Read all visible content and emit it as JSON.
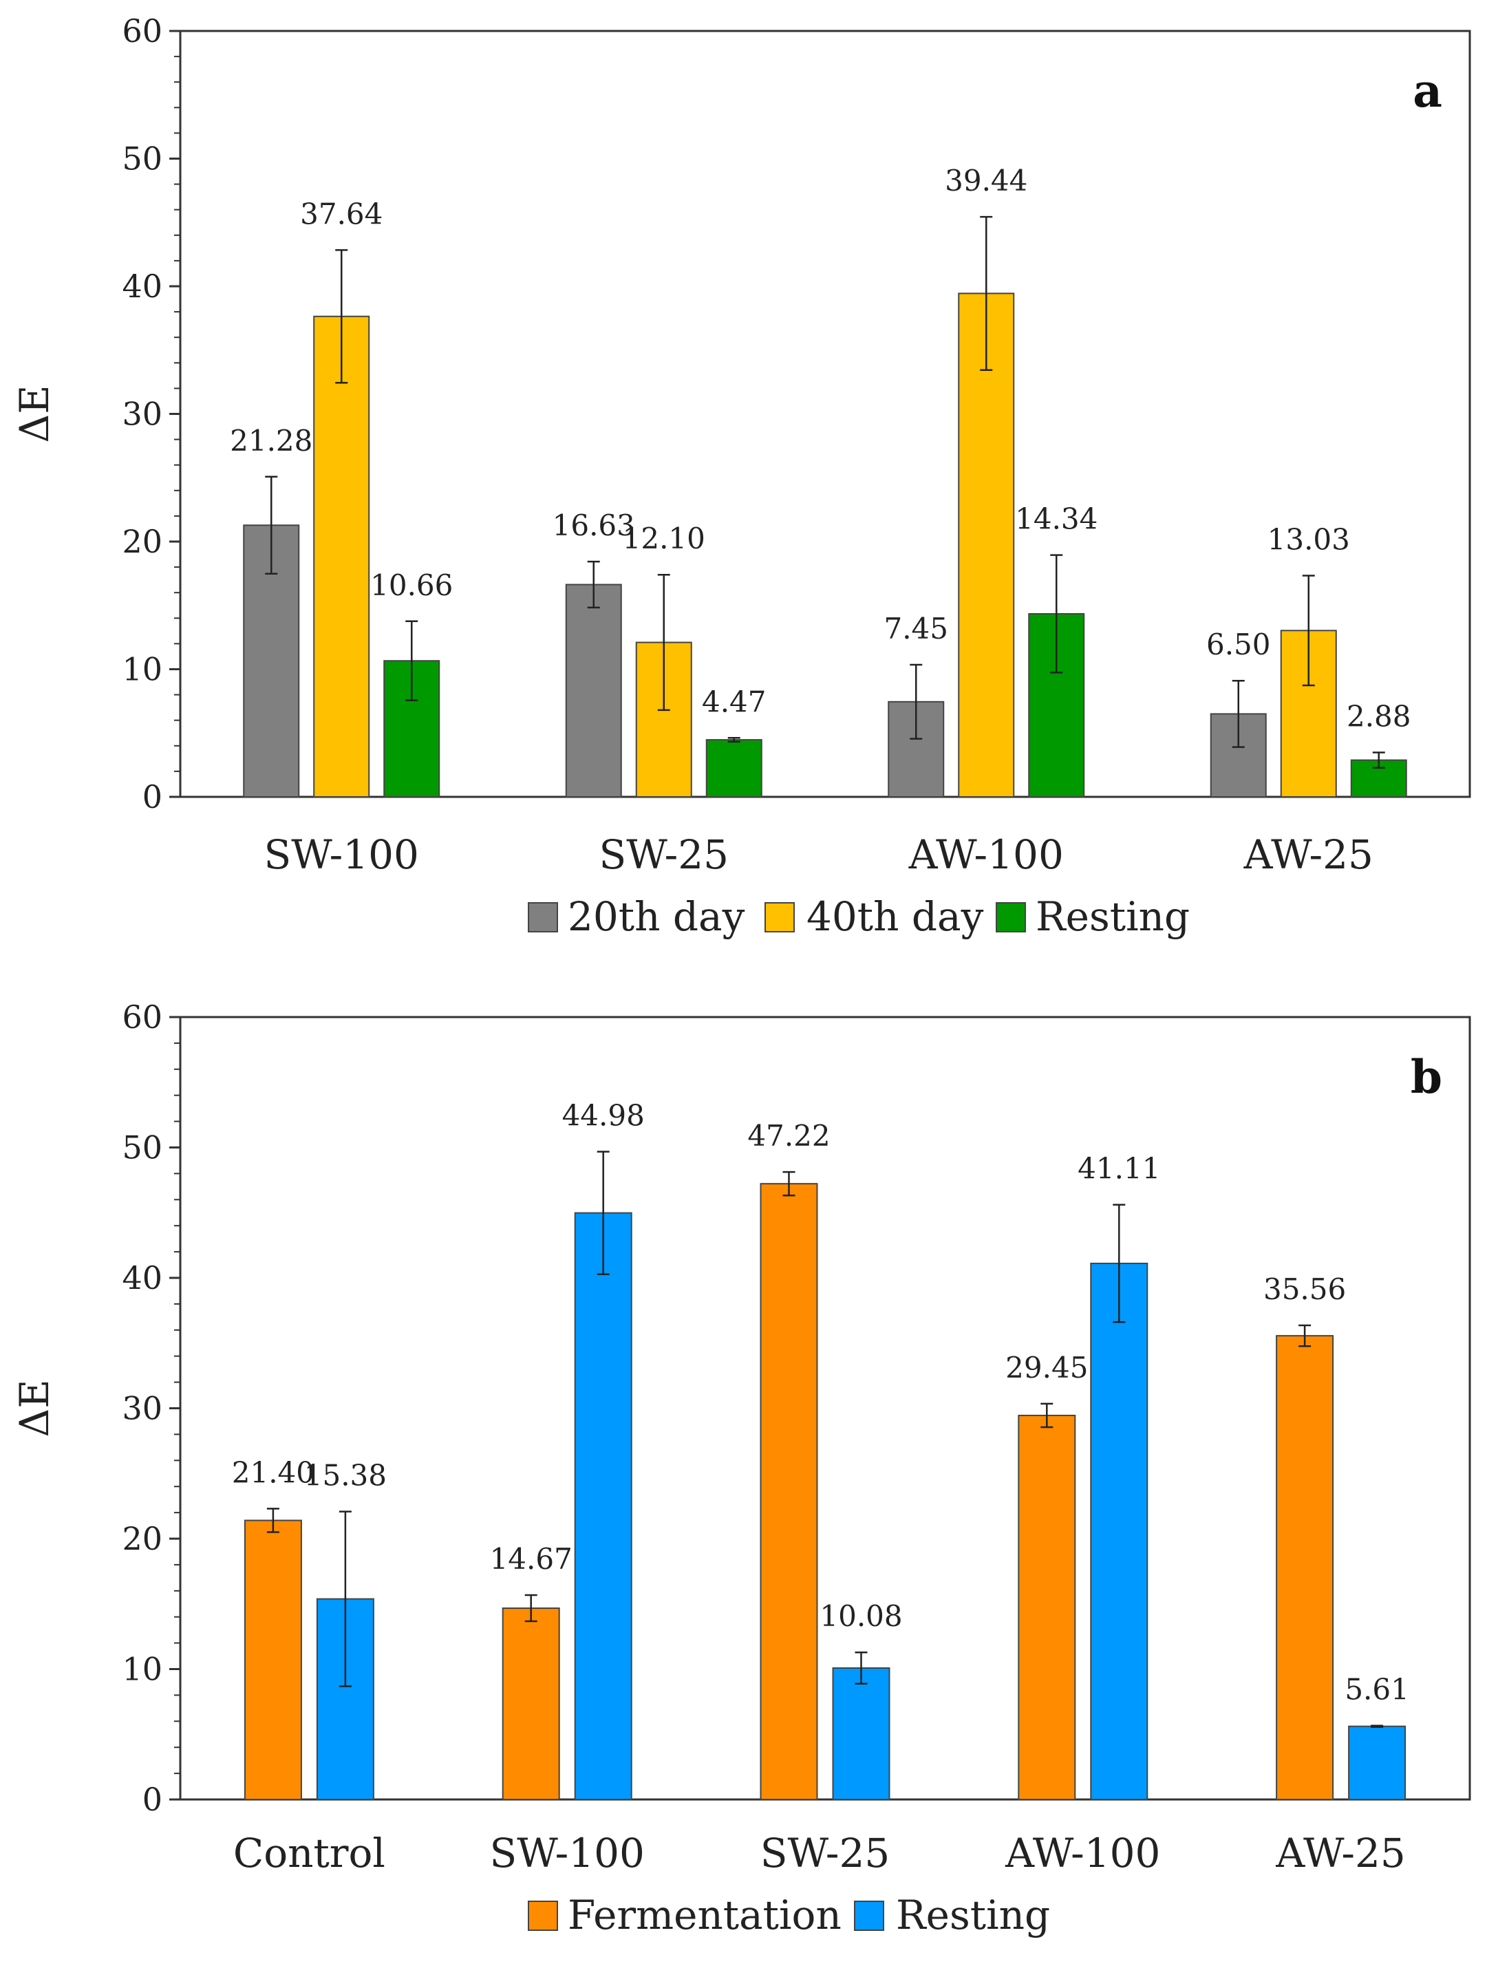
{
  "chart_data": [
    {
      "type": "bar",
      "panel": "a",
      "ylabel": "ΔE",
      "ylim": [
        0,
        60
      ],
      "yticks": [
        "0",
        "10",
        "20",
        "30",
        "40",
        "50",
        "60"
      ],
      "categories": [
        "SW-100",
        "SW-25",
        "AW-100",
        "AW-25"
      ],
      "legend_position": "bottom",
      "series": [
        {
          "name": "20th day",
          "color": "#808080",
          "values": [
            21.28,
            16.63,
            7.45,
            6.5
          ],
          "labels": [
            "21.28",
            "16.63",
            "7.45",
            "6.50"
          ],
          "errors": [
            3.8,
            1.8,
            2.9,
            2.6
          ]
        },
        {
          "name": "40th day",
          "color": "#FFC000",
          "values": [
            37.64,
            12.1,
            39.44,
            13.03
          ],
          "labels": [
            "37.64",
            "12.10",
            "39.44",
            "13.03"
          ],
          "errors": [
            5.2,
            5.3,
            6.0,
            4.3
          ]
        },
        {
          "name": "Resting",
          "color": "#009900",
          "values": [
            10.66,
            4.47,
            14.34,
            2.88
          ],
          "labels": [
            "10.66",
            "4.47",
            "14.34",
            "2.88"
          ],
          "errors": [
            3.1,
            0.15,
            4.6,
            0.6
          ]
        }
      ]
    },
    {
      "type": "bar",
      "panel": "b",
      "ylabel": "ΔE",
      "ylim": [
        0,
        60
      ],
      "yticks": [
        "0",
        "10",
        "20",
        "30",
        "40",
        "50",
        "60"
      ],
      "categories": [
        "Control",
        "SW-100",
        "SW-25",
        "AW-100",
        "AW-25"
      ],
      "legend_position": "bottom",
      "series": [
        {
          "name": "Fermentation",
          "color": "#FF8C00",
          "values": [
            21.4,
            14.67,
            47.22,
            29.45,
            35.56
          ],
          "labels": [
            "21.40",
            "14.67",
            "47.22",
            "29.45",
            "35.56"
          ],
          "errors": [
            0.9,
            1.0,
            0.9,
            0.9,
            0.8
          ]
        },
        {
          "name": "Resting",
          "color": "#0099FF",
          "values": [
            15.38,
            44.98,
            10.08,
            41.11,
            5.61
          ],
          "labels": [
            "15.38",
            "44.98",
            "10.08",
            "41.11",
            "5.61"
          ],
          "errors": [
            6.7,
            4.7,
            1.2,
            4.5,
            0.05
          ]
        }
      ]
    }
  ]
}
